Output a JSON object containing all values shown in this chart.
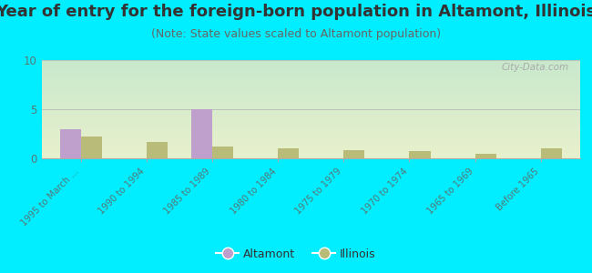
{
  "title": "Year of entry for the foreign-born population in Altamont, Illinois",
  "subtitle": "(Note: State values scaled to Altamont population)",
  "categories": [
    "1995 to March ...",
    "1990 to 1994",
    "1985 to 1989",
    "1980 to 1984",
    "1975 to 1979",
    "1970 to 1974",
    "1965 to 1969",
    "Before 1965"
  ],
  "altamont_values": [
    3.0,
    0,
    5.0,
    0,
    0,
    0,
    0,
    0
  ],
  "illinois_values": [
    2.2,
    1.7,
    1.2,
    1.0,
    0.8,
    0.7,
    0.5,
    1.0
  ],
  "altamont_color": "#bf9fcc",
  "illinois_color": "#b8bc78",
  "ylim": [
    0,
    10
  ],
  "yticks": [
    0,
    5,
    10
  ],
  "bg_top_color": "#c8e8cc",
  "bg_bottom_color": "#e8f0cc",
  "outer_bg": "#00eeff",
  "watermark": "City-Data.com",
  "legend_altamont": "Altamont",
  "legend_illinois": "Illinois",
  "title_fontsize": 13,
  "subtitle_fontsize": 9,
  "tick_label_color": "#557777",
  "bar_width": 0.32
}
